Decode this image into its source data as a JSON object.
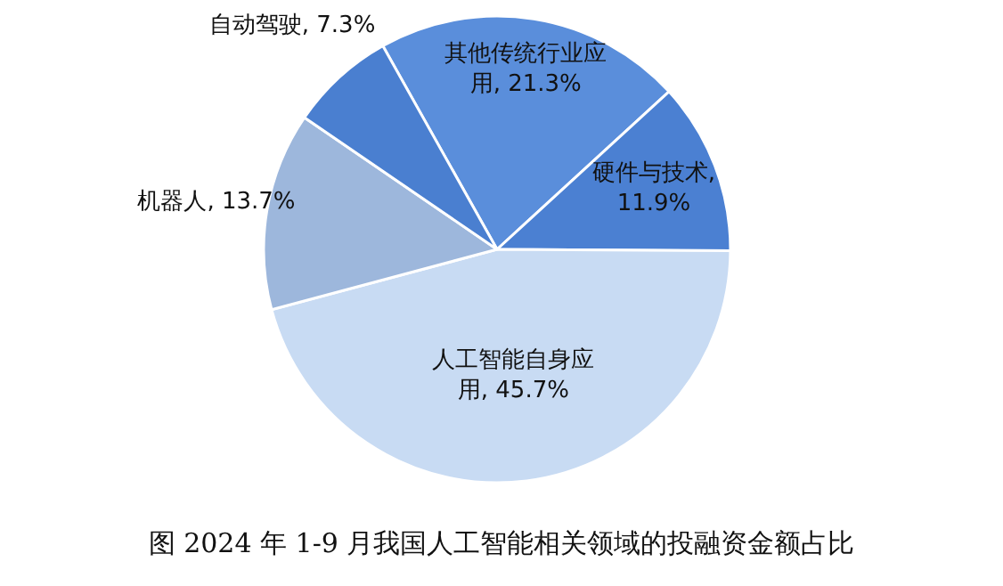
{
  "chart_data": {
    "type": "pie",
    "title": "图  2024 年 1-9 月我国人工智能相关领域的投融资金额占比",
    "categories": [
      "其他传统行业应用",
      "硬件与技术",
      "人工智能自身应用",
      "机器人",
      "自动驾驶"
    ],
    "values": [
      21.3,
      11.9,
      45.7,
      13.7,
      7.3
    ],
    "value_labels": [
      ", 21.3%",
      ", 11.9%",
      ", 45.7%",
      ", 13.7%",
      ", 7.3%"
    ],
    "colors": [
      "#5a8edb",
      "#4b80d2",
      "#c8dbf3",
      "#9db7dc",
      "#4a7fd0"
    ]
  }
}
